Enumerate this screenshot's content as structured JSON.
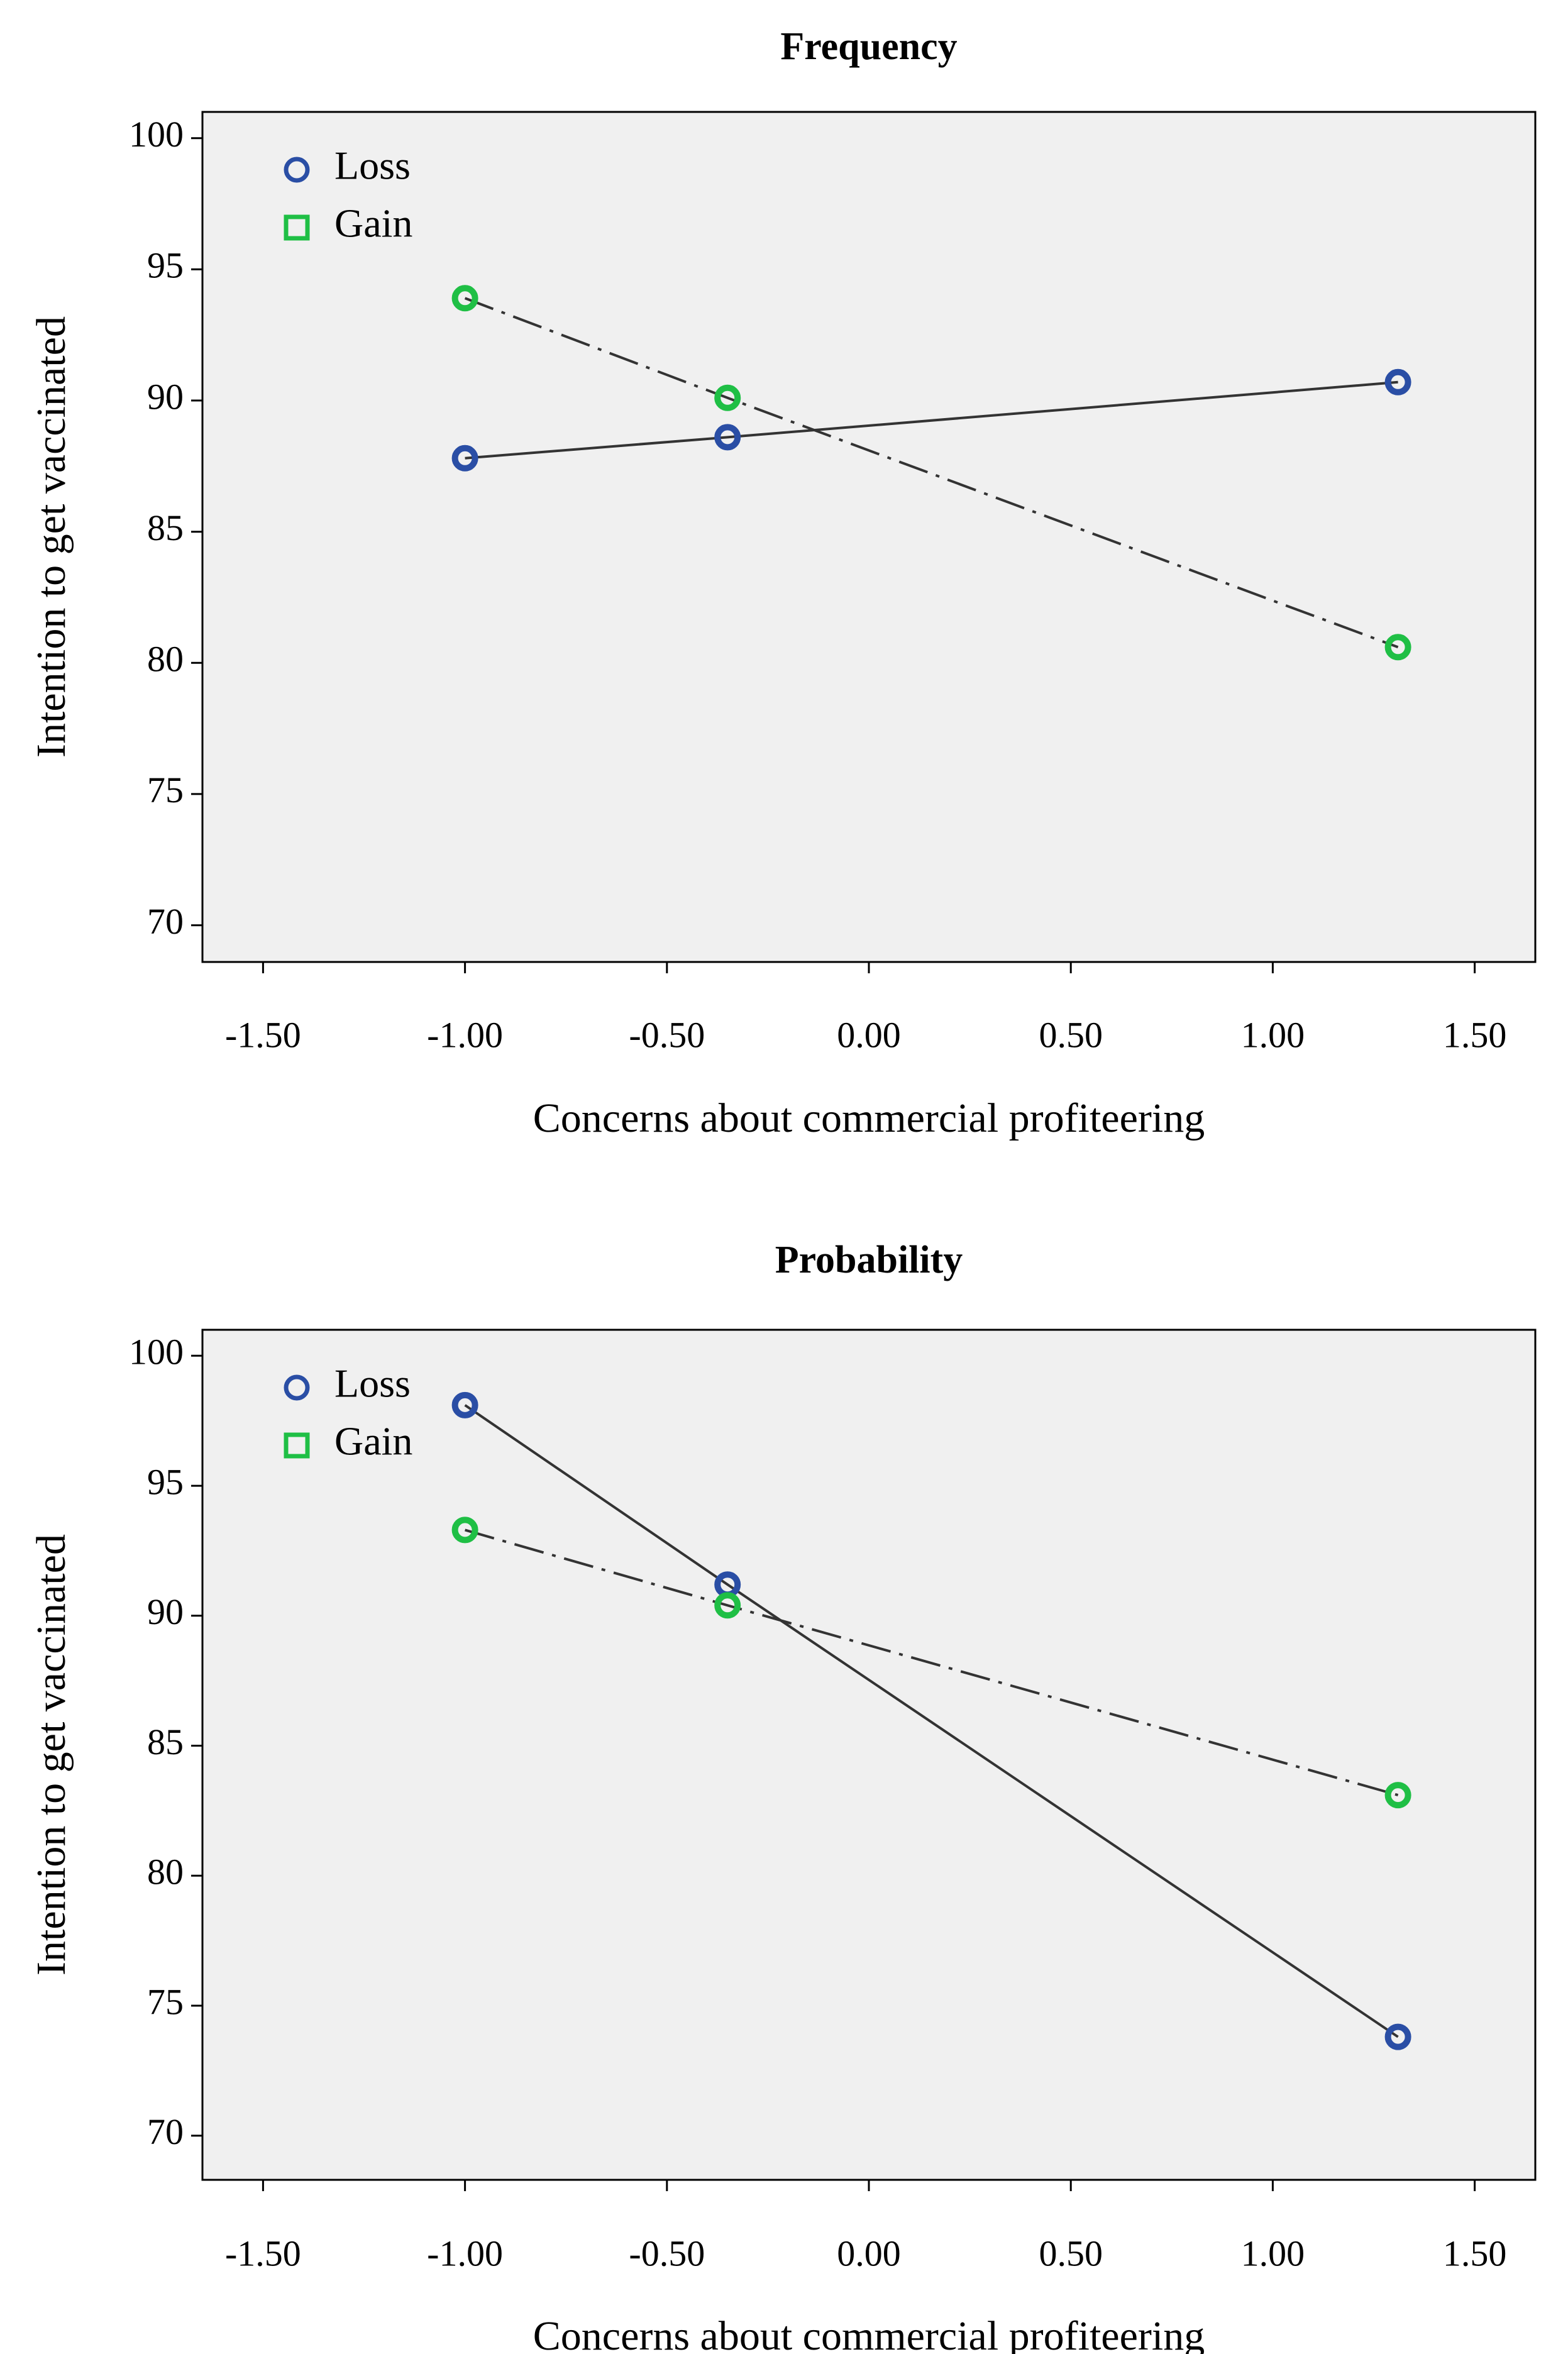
{
  "chart_data": [
    {
      "type": "line",
      "title": "Frequency",
      "xlabel": "Concerns about commercial profiteering",
      "ylabel": "Intention to get vaccinated",
      "xlim": [
        -1.65,
        1.65
      ],
      "ylim": [
        68.6,
        101
      ],
      "x_ticks": [
        -1.5,
        -1.0,
        -0.5,
        0.0,
        0.5,
        1.0,
        1.5
      ],
      "x_tick_labels": [
        "-1.50",
        "-1.00",
        "-0.50",
        "0.00",
        "0.50",
        "1.00",
        "1.50"
      ],
      "y_ticks": [
        70,
        75,
        80,
        85,
        90,
        95,
        100
      ],
      "y_tick_labels": [
        "70",
        "75",
        "80",
        "85",
        "90",
        "95",
        "100"
      ],
      "grid": false,
      "legend": "top-left",
      "x": [
        -1.0,
        -0.35,
        1.31
      ],
      "series": [
        {
          "name": "Loss",
          "values": [
            87.8,
            88.6,
            90.7
          ],
          "color": "#2a4ea5",
          "marker": "circle",
          "line_style": "solid"
        },
        {
          "name": "Gain",
          "values": [
            93.9,
            90.1,
            80.6
          ],
          "color": "#1fbf45",
          "marker": "square",
          "line_style": "dash-dot"
        }
      ]
    },
    {
      "type": "line",
      "title": "Probability",
      "xlabel": "Concerns about commercial profiteering",
      "ylabel": "Intention to get vaccinated",
      "xlim": [
        -1.65,
        1.65
      ],
      "ylim": [
        68.3,
        101
      ],
      "x_ticks": [
        -1.5,
        -1.0,
        -0.5,
        0.0,
        0.5,
        1.0,
        1.5
      ],
      "x_tick_labels": [
        "-1.50",
        "-1.00",
        "-0.50",
        "0.00",
        "0.50",
        "1.00",
        "1.50"
      ],
      "y_ticks": [
        70,
        75,
        80,
        85,
        90,
        95,
        100
      ],
      "y_tick_labels": [
        "70",
        "75",
        "80",
        "85",
        "90",
        "95",
        "100"
      ],
      "grid": false,
      "legend": "top-left",
      "x": [
        -1.0,
        -0.35,
        1.31
      ],
      "series": [
        {
          "name": "Loss",
          "values": [
            98.1,
            91.2,
            73.8
          ],
          "color": "#2a4ea5",
          "marker": "circle",
          "line_style": "solid"
        },
        {
          "name": "Gain",
          "values": [
            93.3,
            90.4,
            83.1
          ],
          "color": "#1fbf45",
          "marker": "square",
          "line_style": "dash-dot"
        }
      ]
    }
  ]
}
